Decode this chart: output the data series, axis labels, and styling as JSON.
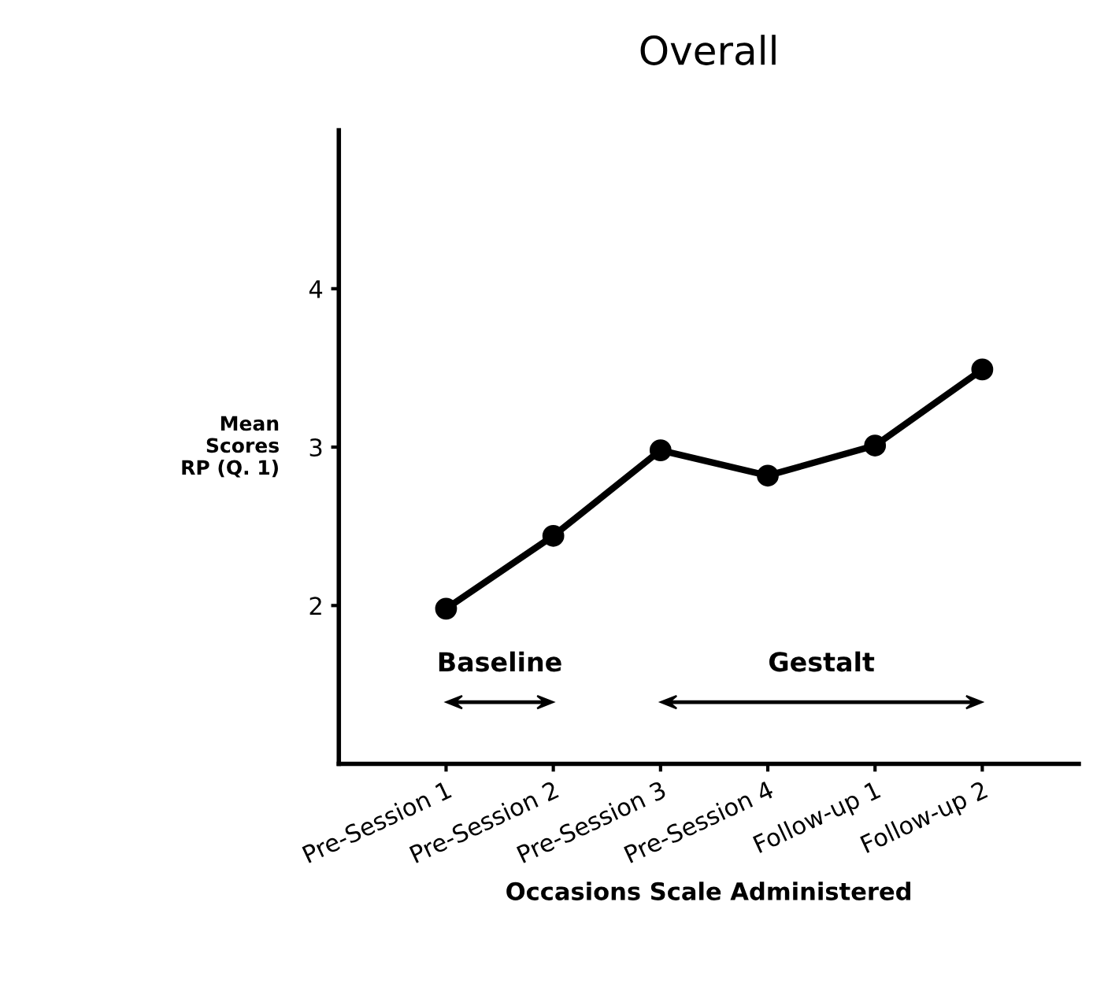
{
  "chart_data": {
    "type": "line",
    "title": "Overall",
    "xlabel": "Occasions Scale Administered",
    "ylabel": "Mean\nScores\nRP (Q. 1)",
    "categories": [
      "Pre-Session 1",
      "Pre-Session 2",
      "Pre-Session 3",
      "Pre-Session 4",
      "Follow-up 1",
      "Follow-up 2"
    ],
    "series": [
      {
        "color": "#000000",
        "values": [
          1.98,
          2.44,
          2.98,
          2.82,
          3.01,
          3.49
        ]
      }
    ],
    "ylim": [
      1,
      5
    ],
    "yticks": [
      2,
      3,
      4
    ],
    "marker": "circle",
    "line_style": "solid",
    "grid": false,
    "legend": false,
    "annotations": [
      "Baseline",
      "Gestalt"
    ]
  }
}
